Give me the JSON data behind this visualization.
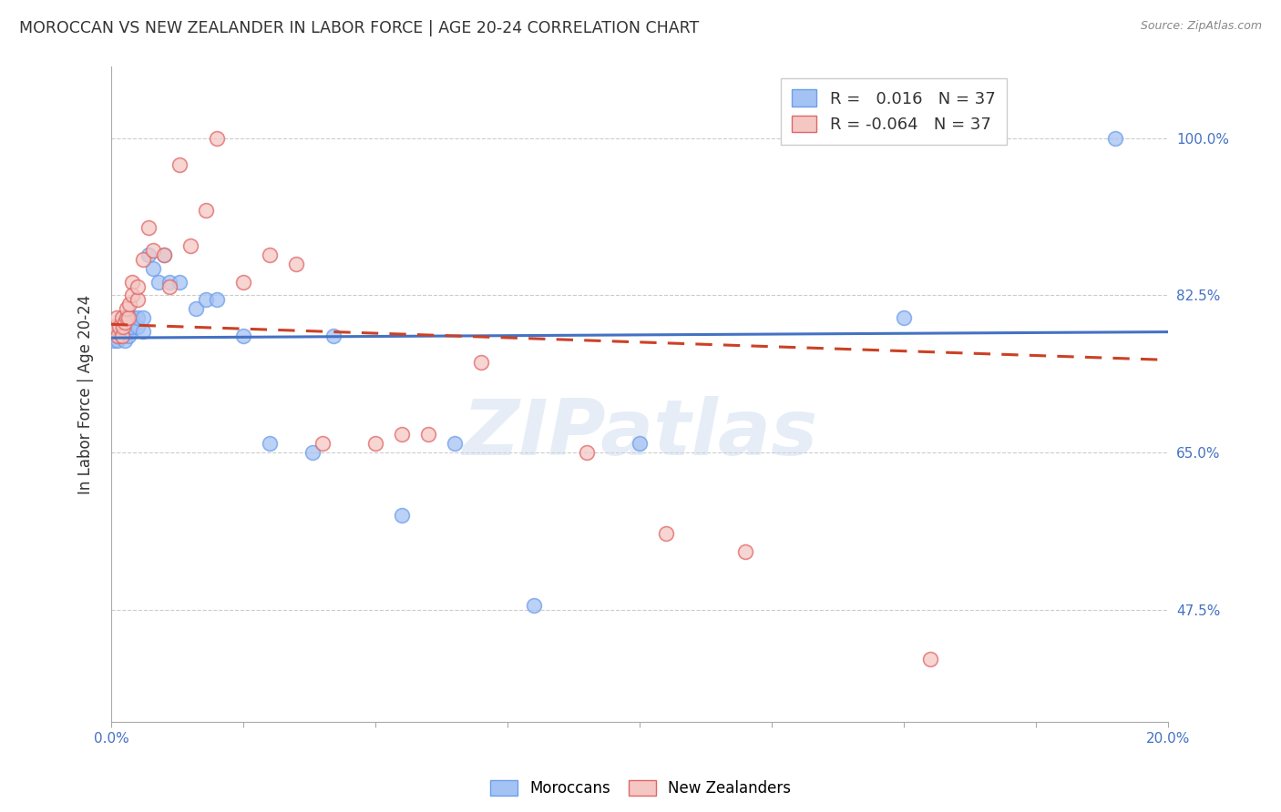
{
  "title": "MOROCCAN VS NEW ZEALANDER IN LABOR FORCE | AGE 20-24 CORRELATION CHART",
  "source": "Source: ZipAtlas.com",
  "ylabel": "In Labor Force | Age 20-24",
  "color_moroccan_fill": "#a4c2f4",
  "color_moroccan_edge": "#6d9eeb",
  "color_moroccan_line": "#4472c4",
  "color_nz_fill": "#f4c7c3",
  "color_nz_edge": "#e06666",
  "color_nz_line": "#cc4125",
  "r_moroccan": 0.016,
  "n_moroccan": 37,
  "r_nz": -0.064,
  "n_nz": 37,
  "legend_moroccan": "Moroccans",
  "legend_nz": "New Zealanders",
  "watermark_text": "ZIPatlas",
  "xlim": [
    0.0,
    0.2
  ],
  "ylim": [
    0.35,
    1.08
  ],
  "yticks": [
    0.475,
    0.65,
    0.825,
    1.0
  ],
  "ytick_labels": [
    "47.5%",
    "65.0%",
    "82.5%",
    "100.0%"
  ],
  "moroccan_x": [
    0.0005,
    0.001,
    0.0012,
    0.0015,
    0.002,
    0.002,
    0.0022,
    0.0025,
    0.003,
    0.003,
    0.0032,
    0.0035,
    0.004,
    0.004,
    0.005,
    0.005,
    0.006,
    0.006,
    0.007,
    0.008,
    0.009,
    0.01,
    0.011,
    0.013,
    0.016,
    0.018,
    0.02,
    0.025,
    0.03,
    0.038,
    0.042,
    0.055,
    0.065,
    0.08,
    0.1,
    0.15,
    0.19
  ],
  "moroccan_y": [
    0.775,
    0.78,
    0.775,
    0.79,
    0.78,
    0.79,
    0.8,
    0.775,
    0.785,
    0.795,
    0.78,
    0.8,
    0.79,
    0.8,
    0.79,
    0.8,
    0.785,
    0.8,
    0.87,
    0.855,
    0.84,
    0.87,
    0.84,
    0.84,
    0.81,
    0.82,
    0.82,
    0.78,
    0.66,
    0.65,
    0.78,
    0.58,
    0.66,
    0.48,
    0.66,
    0.8,
    1.0
  ],
  "nz_x": [
    0.0005,
    0.001,
    0.0012,
    0.0015,
    0.002,
    0.002,
    0.0022,
    0.0025,
    0.003,
    0.003,
    0.0032,
    0.0035,
    0.004,
    0.004,
    0.005,
    0.005,
    0.006,
    0.007,
    0.008,
    0.01,
    0.011,
    0.013,
    0.015,
    0.018,
    0.02,
    0.025,
    0.03,
    0.035,
    0.04,
    0.05,
    0.055,
    0.06,
    0.07,
    0.09,
    0.105,
    0.12,
    0.155
  ],
  "nz_y": [
    0.79,
    0.8,
    0.78,
    0.79,
    0.8,
    0.78,
    0.79,
    0.795,
    0.8,
    0.81,
    0.8,
    0.815,
    0.84,
    0.825,
    0.82,
    0.835,
    0.865,
    0.9,
    0.875,
    0.87,
    0.835,
    0.97,
    0.88,
    0.92,
    1.0,
    0.84,
    0.87,
    0.86,
    0.66,
    0.66,
    0.67,
    0.67,
    0.75,
    0.65,
    0.56,
    0.54,
    0.42
  ]
}
